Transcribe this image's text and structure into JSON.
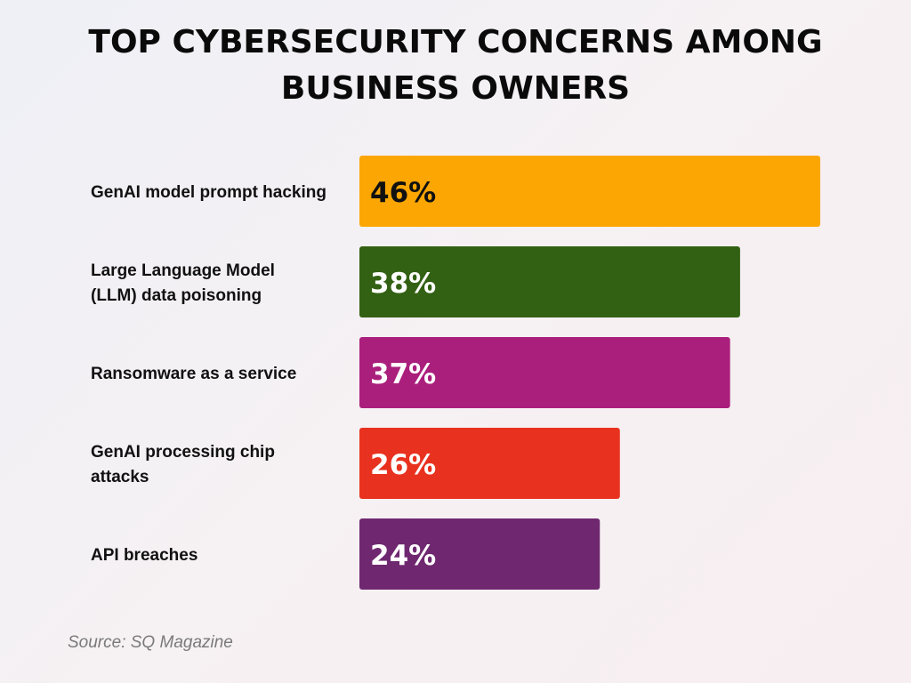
{
  "chart_data": {
    "type": "bar",
    "orientation": "horizontal",
    "title": "TOP CYBERSECURITY CONCERNS AMONG BUSINESS OWNERS",
    "categories": [
      "GenAI model prompt hacking",
      "Large Language Model (LLM) data poisoning",
      "Ransomware as a service",
      "GenAI processing chip attacks",
      "API breaches"
    ],
    "category_lines": [
      [
        "GenAI model prompt hacking"
      ],
      [
        "Large Language Model",
        "(LLM) data poisoning"
      ],
      [
        "Ransomware as a service"
      ],
      [
        "GenAI processing chip",
        "attacks"
      ],
      [
        "API breaches"
      ]
    ],
    "values": [
      46,
      38,
      37,
      26,
      24
    ],
    "data_labels": [
      "46%",
      "38%",
      "37%",
      "26%",
      "24%"
    ],
    "colors": [
      "#FBA603",
      "#336114",
      "#AA1F7C",
      "#E8321F",
      "#6F2870"
    ],
    "label_colors": [
      "#111111",
      "#ffffff",
      "#ffffff",
      "#ffffff",
      "#ffffff"
    ],
    "unit": "%",
    "xlim": [
      0,
      46
    ],
    "grid": false,
    "legend": "none"
  },
  "source": "Source: SQ Magazine"
}
